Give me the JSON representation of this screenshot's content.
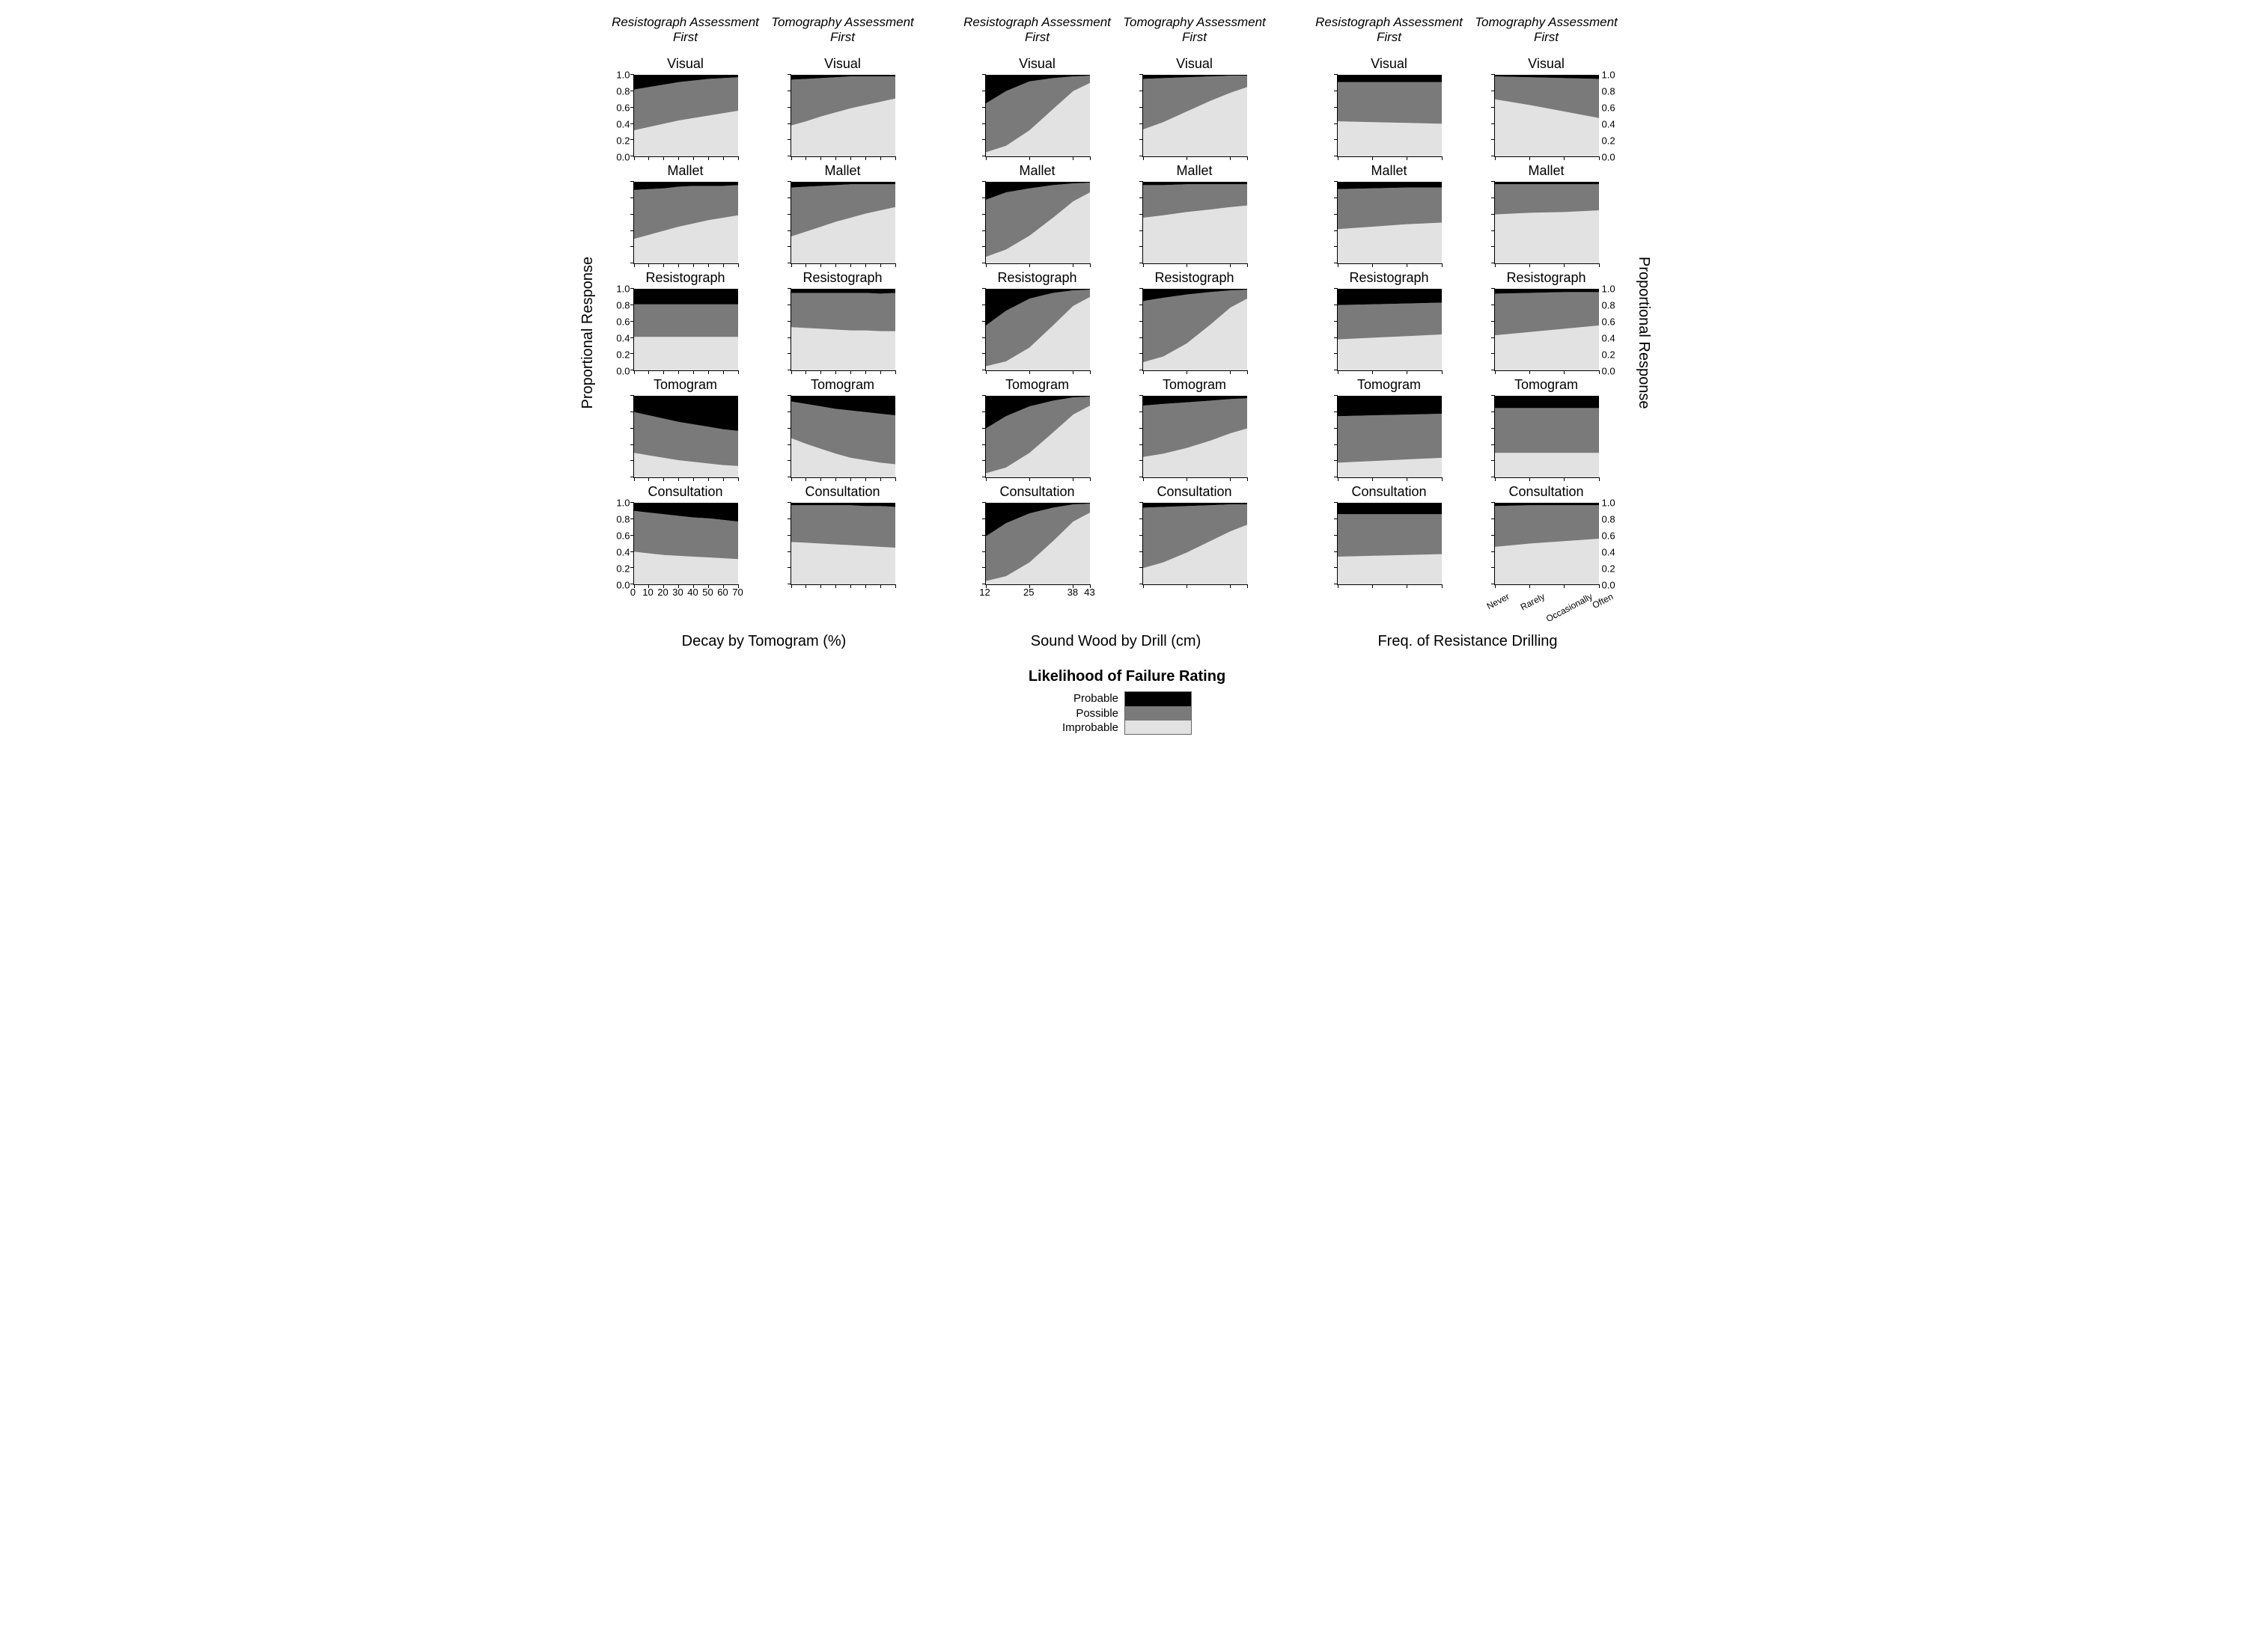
{
  "colors": {
    "probable": "#000000",
    "possible": "#7a7a7a",
    "improbable": "#e2e2e2",
    "axis": "#000000",
    "background": "#ffffff"
  },
  "legend": {
    "title": "Likelihood of Failure Rating",
    "items": [
      "Probable",
      "Possible",
      "Improbable"
    ]
  },
  "yaxis": {
    "label": "Proportional Response",
    "lim": [
      0,
      1
    ],
    "ticks": [
      0.0,
      0.2,
      0.4,
      0.6,
      0.8,
      1.0
    ],
    "tick_labels": [
      "0.0",
      "0.2",
      "0.4",
      "0.6",
      "0.8",
      "1.0"
    ]
  },
  "super_headers": [
    "Resistograph Assessment First",
    "Tomography Assessment First"
  ],
  "row_titles": [
    "Visual",
    "Mallet",
    "Resistograph",
    "Tomogram",
    "Consultation"
  ],
  "ytick_rows": [
    0,
    2,
    4
  ],
  "groups": [
    {
      "xaxis_title": "Decay by Tomogram (%)",
      "xlim": [
        0,
        70
      ],
      "xticks": [
        0,
        10,
        20,
        30,
        40,
        50,
        60,
        70
      ],
      "xtick_labels": [
        "0",
        "10",
        "20",
        "30",
        "40",
        "50",
        "60",
        "70"
      ],
      "xtick_rotate": false,
      "panels": [
        [
          {
            "x": [
              0,
              10,
              20,
              30,
              40,
              50,
              60,
              70
            ],
            "improb": [
              0.32,
              0.36,
              0.4,
              0.44,
              0.47,
              0.5,
              0.53,
              0.56
            ],
            "poss": [
              0.5,
              0.49,
              0.48,
              0.47,
              0.46,
              0.45,
              0.43,
              0.41
            ]
          },
          {
            "x": [
              0,
              10,
              20,
              30,
              40,
              50,
              60,
              70
            ],
            "improb": [
              0.38,
              0.43,
              0.49,
              0.54,
              0.59,
              0.63,
              0.67,
              0.71
            ],
            "poss": [
              0.56,
              0.52,
              0.47,
              0.43,
              0.39,
              0.35,
              0.31,
              0.27
            ]
          }
        ],
        [
          {
            "x": [
              0,
              10,
              20,
              30,
              40,
              50,
              60,
              70
            ],
            "improb": [
              0.3,
              0.35,
              0.4,
              0.45,
              0.49,
              0.53,
              0.56,
              0.59
            ],
            "poss": [
              0.6,
              0.56,
              0.52,
              0.49,
              0.46,
              0.42,
              0.39,
              0.37
            ]
          },
          {
            "x": [
              0,
              10,
              20,
              30,
              40,
              50,
              60,
              70
            ],
            "improb": [
              0.33,
              0.39,
              0.45,
              0.51,
              0.56,
              0.61,
              0.65,
              0.69
            ],
            "poss": [
              0.6,
              0.55,
              0.5,
              0.45,
              0.41,
              0.36,
              0.32,
              0.28
            ]
          }
        ],
        [
          {
            "x": [
              0,
              10,
              20,
              30,
              40,
              50,
              60,
              70
            ],
            "improb": [
              0.41,
              0.41,
              0.41,
              0.41,
              0.41,
              0.41,
              0.41,
              0.41
            ],
            "poss": [
              0.4,
              0.4,
              0.4,
              0.4,
              0.4,
              0.4,
              0.4,
              0.4
            ]
          },
          {
            "x": [
              0,
              10,
              20,
              30,
              40,
              50,
              60,
              70
            ],
            "improb": [
              0.53,
              0.52,
              0.51,
              0.5,
              0.49,
              0.49,
              0.48,
              0.48
            ],
            "poss": [
              0.42,
              0.43,
              0.44,
              0.45,
              0.46,
              0.46,
              0.46,
              0.47
            ]
          }
        ],
        [
          {
            "x": [
              0,
              10,
              20,
              30,
              40,
              50,
              60,
              70
            ],
            "improb": [
              0.3,
              0.27,
              0.24,
              0.21,
              0.19,
              0.17,
              0.15,
              0.14
            ],
            "poss": [
              0.5,
              0.49,
              0.48,
              0.47,
              0.46,
              0.45,
              0.44,
              0.43
            ]
          },
          {
            "x": [
              0,
              10,
              20,
              30,
              40,
              50,
              60,
              70
            ],
            "improb": [
              0.48,
              0.41,
              0.35,
              0.29,
              0.24,
              0.21,
              0.18,
              0.16
            ],
            "poss": [
              0.45,
              0.49,
              0.52,
              0.55,
              0.58,
              0.59,
              0.6,
              0.6
            ]
          }
        ],
        [
          {
            "x": [
              0,
              10,
              20,
              30,
              40,
              50,
              60,
              70
            ],
            "improb": [
              0.4,
              0.38,
              0.36,
              0.35,
              0.34,
              0.33,
              0.32,
              0.31
            ],
            "poss": [
              0.5,
              0.5,
              0.5,
              0.49,
              0.48,
              0.48,
              0.47,
              0.46
            ]
          },
          {
            "x": [
              0,
              10,
              20,
              30,
              40,
              50,
              60,
              70
            ],
            "improb": [
              0.52,
              0.51,
              0.5,
              0.49,
              0.48,
              0.47,
              0.46,
              0.45
            ],
            "poss": [
              0.45,
              0.46,
              0.47,
              0.48,
              0.49,
              0.49,
              0.5,
              0.5
            ]
          }
        ]
      ]
    },
    {
      "xaxis_title": "Sound Wood by Drill (cm)",
      "xlim": [
        12,
        43
      ],
      "xticks": [
        12,
        25,
        38,
        43
      ],
      "xtick_labels": [
        "12",
        "25",
        "38",
        "43"
      ],
      "xtick_rotate": false,
      "panels": [
        [
          {
            "x": [
              12,
              18,
              25,
              32,
              38,
              43
            ],
            "improb": [
              0.05,
              0.13,
              0.32,
              0.58,
              0.8,
              0.9
            ],
            "poss": [
              0.6,
              0.67,
              0.6,
              0.38,
              0.18,
              0.09
            ]
          },
          {
            "x": [
              12,
              18,
              25,
              32,
              38,
              43
            ],
            "improb": [
              0.33,
              0.42,
              0.55,
              0.68,
              0.78,
              0.85
            ],
            "poss": [
              0.62,
              0.54,
              0.42,
              0.3,
              0.21,
              0.14
            ]
          }
        ],
        [
          {
            "x": [
              12,
              18,
              25,
              32,
              38,
              43
            ],
            "improb": [
              0.08,
              0.17,
              0.34,
              0.56,
              0.76,
              0.87
            ],
            "poss": [
              0.7,
              0.7,
              0.58,
              0.4,
              0.22,
              0.12
            ]
          },
          {
            "x": [
              12,
              18,
              25,
              32,
              38,
              43
            ],
            "improb": [
              0.56,
              0.59,
              0.63,
              0.66,
              0.69,
              0.71
            ],
            "poss": [
              0.4,
              0.37,
              0.34,
              0.31,
              0.28,
              0.26
            ]
          }
        ],
        [
          {
            "x": [
              12,
              18,
              25,
              32,
              38,
              43
            ],
            "improb": [
              0.05,
              0.11,
              0.28,
              0.55,
              0.79,
              0.9
            ],
            "poss": [
              0.5,
              0.62,
              0.6,
              0.4,
              0.19,
              0.09
            ]
          },
          {
            "x": [
              12,
              18,
              25,
              32,
              38,
              43
            ],
            "improb": [
              0.1,
              0.17,
              0.33,
              0.56,
              0.77,
              0.88
            ],
            "poss": [
              0.75,
              0.72,
              0.6,
              0.4,
              0.21,
              0.11
            ]
          }
        ],
        [
          {
            "x": [
              12,
              18,
              25,
              32,
              38,
              43
            ],
            "improb": [
              0.05,
              0.12,
              0.3,
              0.55,
              0.77,
              0.88
            ],
            "poss": [
              0.55,
              0.63,
              0.57,
              0.39,
              0.21,
              0.11
            ]
          },
          {
            "x": [
              12,
              18,
              25,
              32,
              38,
              43
            ],
            "improb": [
              0.25,
              0.29,
              0.36,
              0.45,
              0.54,
              0.6
            ],
            "poss": [
              0.63,
              0.61,
              0.56,
              0.49,
              0.42,
              0.37
            ]
          }
        ],
        [
          {
            "x": [
              12,
              18,
              25,
              32,
              38,
              43
            ],
            "improb": [
              0.04,
              0.1,
              0.27,
              0.53,
              0.77,
              0.88
            ],
            "poss": [
              0.55,
              0.65,
              0.6,
              0.41,
              0.21,
              0.11
            ]
          },
          {
            "x": [
              12,
              18,
              25,
              32,
              38,
              43
            ],
            "improb": [
              0.2,
              0.27,
              0.39,
              0.53,
              0.65,
              0.73
            ],
            "poss": [
              0.74,
              0.68,
              0.57,
              0.44,
              0.33,
              0.25
            ]
          }
        ]
      ]
    },
    {
      "xaxis_title": "Freq. of Resistance Drilling",
      "xlim": [
        0,
        3
      ],
      "xticks": [
        0,
        1,
        2,
        3
      ],
      "xtick_labels": [
        "Never",
        "Rarely",
        "Occasionally",
        "Often"
      ],
      "xtick_rotate": true,
      "panels": [
        [
          {
            "x": [
              0,
              1,
              2,
              3
            ],
            "improb": [
              0.43,
              0.42,
              0.41,
              0.4
            ],
            "poss": [
              0.48,
              0.49,
              0.5,
              0.51
            ]
          },
          {
            "x": [
              0,
              1,
              2,
              3
            ],
            "improb": [
              0.7,
              0.63,
              0.55,
              0.47
            ],
            "poss": [
              0.28,
              0.34,
              0.41,
              0.48
            ]
          }
        ],
        [
          {
            "x": [
              0,
              1,
              2,
              3
            ],
            "improb": [
              0.42,
              0.45,
              0.48,
              0.5
            ],
            "poss": [
              0.49,
              0.47,
              0.45,
              0.43
            ]
          },
          {
            "x": [
              0,
              1,
              2,
              3
            ],
            "improb": [
              0.6,
              0.62,
              0.63,
              0.65
            ],
            "poss": [
              0.37,
              0.35,
              0.34,
              0.32
            ]
          }
        ],
        [
          {
            "x": [
              0,
              1,
              2,
              3
            ],
            "improb": [
              0.38,
              0.4,
              0.42,
              0.44
            ],
            "poss": [
              0.42,
              0.41,
              0.4,
              0.39
            ]
          },
          {
            "x": [
              0,
              1,
              2,
              3
            ],
            "improb": [
              0.43,
              0.47,
              0.51,
              0.55
            ],
            "poss": [
              0.51,
              0.48,
              0.45,
              0.41
            ]
          }
        ],
        [
          {
            "x": [
              0,
              1,
              2,
              3
            ],
            "improb": [
              0.18,
              0.2,
              0.22,
              0.24
            ],
            "poss": [
              0.57,
              0.56,
              0.55,
              0.54
            ]
          },
          {
            "x": [
              0,
              1,
              2,
              3
            ],
            "improb": [
              0.3,
              0.3,
              0.3,
              0.3
            ],
            "poss": [
              0.55,
              0.55,
              0.55,
              0.55
            ]
          }
        ],
        [
          {
            "x": [
              0,
              1,
              2,
              3
            ],
            "improb": [
              0.34,
              0.35,
              0.36,
              0.37
            ],
            "poss": [
              0.52,
              0.51,
              0.5,
              0.49
            ]
          },
          {
            "x": [
              0,
              1,
              2,
              3
            ],
            "improb": [
              0.46,
              0.5,
              0.53,
              0.56
            ],
            "poss": [
              0.5,
              0.47,
              0.44,
              0.41
            ]
          }
        ]
      ]
    }
  ]
}
